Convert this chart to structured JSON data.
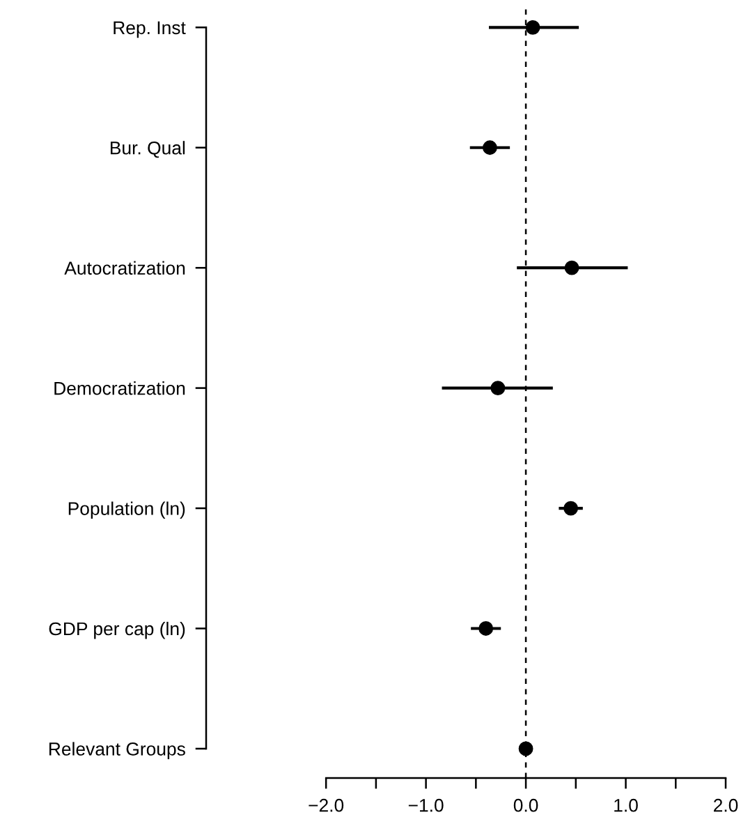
{
  "chart_data": {
    "type": "scatter",
    "orientation": "horizontal",
    "marker": "circle",
    "grid": false,
    "legend": false,
    "categories": [
      "Rep. Inst",
      "Bur. Qual",
      "Autocratization",
      "Democratization",
      "Population (ln)",
      "GDP per cap (ln)",
      "Relevant Groups"
    ],
    "series": [
      {
        "color": "#000000",
        "values": [
          0.07,
          -0.36,
          0.46,
          -0.28,
          0.45,
          -0.4,
          0.0
        ],
        "errors": [
          [
            -0.37,
            0.53
          ],
          [
            -0.56,
            -0.16
          ],
          [
            -0.09,
            1.02
          ],
          [
            -0.84,
            0.27
          ],
          [
            0.33,
            0.57
          ],
          [
            -0.55,
            -0.25
          ],
          null
        ]
      }
    ],
    "xlim": [
      -3.2,
      2.0
    ],
    "xticks": [
      {
        "value": -2,
        "label": "−2.0"
      },
      {
        "value": -1.5,
        "label": null
      },
      {
        "value": -1,
        "label": "−1.0"
      },
      {
        "value": -0.5,
        "label": null
      },
      {
        "value": 0,
        "label": "0.0"
      },
      {
        "value": 0.5,
        "label": null
      },
      {
        "value": 1,
        "label": "1.0"
      },
      {
        "value": 1.5,
        "label": null
      },
      {
        "value": 2,
        "label": "2.0"
      }
    ],
    "ref_lines": [
      {
        "axis": "x",
        "value": 0,
        "color": "#000000",
        "line_style": "dashed"
      }
    ]
  }
}
